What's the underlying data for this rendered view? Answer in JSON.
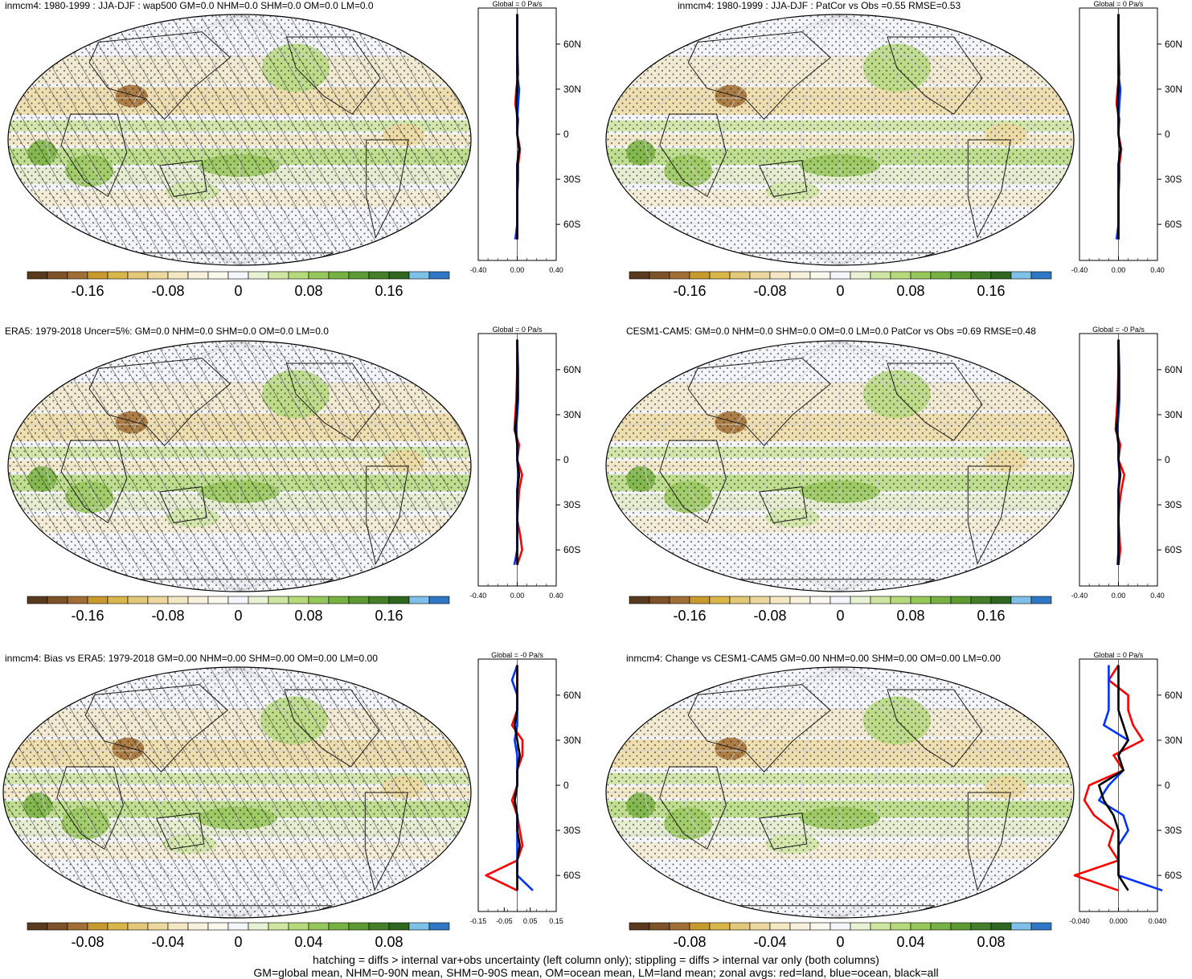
{
  "colors": {
    "colorbar": [
      "#5a3a1c",
      "#7d5228",
      "#a16f35",
      "#c89a2e",
      "#d8b64a",
      "#e2c878",
      "#ecd89e",
      "#f3e8c3",
      "#f8f1dc",
      "#fbf8ee",
      "#f4f6fc",
      "#e8f2d4",
      "#cfe6a3",
      "#b5d97b",
      "#96c75a",
      "#78b143",
      "#5c9a33",
      "#437f29",
      "#2e6720",
      "#7fc0e8",
      "#2f77c4"
    ],
    "map_background": "#f4f5fb",
    "land_line": "#1a1a1a",
    "zonal_land": "#ff0000",
    "zonal_ocean": "#0033ff",
    "zonal_all": "#000000"
  },
  "panels": [
    {
      "title": "inmcm4: 1980-1999 : JJA-DJF : wap500 GM=0.0 NHM=0.0 SHM=0.0 OM=0.0 LM=0.0",
      "colorbar_labels": [
        "-0.16",
        "-0.08",
        "0",
        "0.08",
        "0.16"
      ],
      "zonal": {
        "header": "Global = 0 Pa/s",
        "x_ticks": [
          "-0.40",
          "0.00",
          "0.40"
        ],
        "lat_labels": [
          "60N",
          "30N",
          "0",
          "30S",
          "60S"
        ]
      }
    },
    {
      "title": "inmcm4: 1980-1999 : JJA-DJF : PatCor vs Obs =0.55 RMSE=0.53",
      "colorbar_labels": [
        "-0.16",
        "-0.08",
        "0",
        "0.08",
        "0.16"
      ],
      "zonal": {
        "header": "Global = 0 Pa/s",
        "x_ticks": [
          "-0.40",
          "0.00",
          "0.40"
        ],
        "lat_labels": [
          "60N",
          "30N",
          "0",
          "30S",
          "60S"
        ]
      }
    },
    {
      "title": "ERA5: 1979-2018 Uncer=5%: GM=0.0 NHM=0.0 SHM=0.0 OM=0.0 LM=0.0",
      "colorbar_labels": [
        "-0.16",
        "-0.08",
        "0",
        "0.08",
        "0.16"
      ],
      "zonal": {
        "header": "Global = 0 Pa/s",
        "x_ticks": [
          "-0.40",
          "0.00",
          "0.40"
        ],
        "lat_labels": [
          "60N",
          "30N",
          "0",
          "30S",
          "60S"
        ]
      }
    },
    {
      "title": "CESM1-CAM5: GM=0.0 NHM=0.0 SHM=0.0 OM=0.0 LM=0.0 PatCor vs Obs =0.69 RMSE=0.48",
      "colorbar_labels": [
        "-0.16",
        "-0.08",
        "0",
        "0.08",
        "0.16"
      ],
      "zonal": {
        "header": "Global = -0 Pa/s",
        "x_ticks": [
          "-0.40",
          "0.00",
          "0.40"
        ],
        "lat_labels": [
          "60N",
          "30N",
          "0",
          "30S",
          "60S"
        ]
      }
    },
    {
      "title": "inmcm4: Bias vs ERA5: 1979-2018 GM=0.00 NHM=0.00 SHM=0.00 OM=0.00 LM=0.00",
      "colorbar_labels": [
        "-0.08",
        "-0.04",
        "0",
        "0.04",
        "0.08"
      ],
      "zonal": {
        "header": "Global = -0 Pa/s",
        "x_ticks": [
          "-0.15",
          "-0.05",
          "0.05",
          "0.15"
        ],
        "lat_labels": [
          "60N",
          "30N",
          "0",
          "30S",
          "60S"
        ]
      }
    },
    {
      "title": "inmcm4: Change vs CESM1-CAM5 GM=0.00 NHM=0.00 SHM=0.00 OM=0.00 LM=0.00",
      "colorbar_labels": [
        "-0.08",
        "-0.04",
        "0",
        "0.04",
        "0.08"
      ],
      "zonal": {
        "header": "Global = 0 Pa/s",
        "x_ticks": [
          "-0.040",
          "0.000",
          "0.040"
        ],
        "lat_labels": [
          "60N",
          "30N",
          "0",
          "30S",
          "60S"
        ]
      }
    }
  ],
  "footer": {
    "line1": "hatching = diffs > internal var+obs uncertainty (left column only); stippling = diffs > internal var only (both columns)",
    "line2": "GM=global mean, NHM=0-90N mean, SHM=0-90S mean, OM=ocean mean, LM=land mean; zonal avgs: red=land, blue=ocean, black=all"
  },
  "chart_data": [
    {
      "type": "heatmap",
      "title": "inmcm4: 1980-1999 : JJA-DJF : wap500 GM=0.0 NHM=0.0 SHM=0.0 OM=0.0 LM=0.0",
      "colorbar_ticks": [
        -0.16,
        -0.08,
        0,
        0.08,
        0.16
      ],
      "zonal_mean_profile": {
        "lat": [
          80,
          60,
          40,
          30,
          20,
          10,
          0,
          -10,
          -20,
          -30,
          -40,
          -50,
          -60,
          -70
        ],
        "land": [
          0.0,
          0.0,
          0.01,
          -0.01,
          -0.02,
          0.01,
          0.0,
          0.03,
          0.01,
          0.01,
          0.0,
          0.0,
          0.0,
          0.0
        ],
        "ocean": [
          0.0,
          0.0,
          0.0,
          0.02,
          0.01,
          0.0,
          0.0,
          0.02,
          0.0,
          0.0,
          0.0,
          0.0,
          0.0,
          -0.02
        ],
        "all": [
          0.0,
          0.0,
          0.0,
          0.0,
          -0.01,
          0.0,
          0.0,
          0.02,
          0.0,
          0.0,
          0.0,
          0.0,
          0.0,
          0.0
        ],
        "xlim": [
          -0.4,
          0.4
        ]
      }
    },
    {
      "type": "heatmap",
      "title": "inmcm4: 1980-1999 : JJA-DJF : PatCor vs Obs =0.55 RMSE=0.53",
      "colorbar_ticks": [
        -0.16,
        -0.08,
        0,
        0.08,
        0.16
      ],
      "zonal_mean_profile": {
        "lat": [
          80,
          60,
          40,
          30,
          20,
          10,
          0,
          -10,
          -20,
          -30,
          -40,
          -50,
          -60,
          -70
        ],
        "land": [
          0.0,
          0.0,
          0.01,
          -0.01,
          -0.02,
          0.01,
          0.0,
          0.03,
          0.01,
          0.01,
          0.0,
          0.0,
          0.0,
          0.0
        ],
        "ocean": [
          0.0,
          0.0,
          0.0,
          0.02,
          0.01,
          0.0,
          0.0,
          0.02,
          0.0,
          0.0,
          0.0,
          0.0,
          0.0,
          -0.02
        ],
        "all": [
          0.0,
          0.0,
          0.0,
          0.0,
          -0.01,
          0.0,
          0.0,
          0.02,
          0.0,
          0.0,
          0.0,
          0.0,
          0.0,
          0.0
        ],
        "xlim": [
          -0.4,
          0.4
        ]
      }
    },
    {
      "type": "heatmap",
      "title": "ERA5: 1979-2018 Uncer=5%: GM=0.0 NHM=0.0 SHM=0.0 OM=0.0 LM=0.0",
      "colorbar_ticks": [
        -0.16,
        -0.08,
        0,
        0.08,
        0.16
      ],
      "zonal_mean_profile": {
        "lat": [
          80,
          60,
          40,
          30,
          20,
          10,
          0,
          -10,
          -20,
          -30,
          -40,
          -50,
          -60,
          -70
        ],
        "land": [
          0.0,
          0.0,
          -0.01,
          -0.02,
          -0.03,
          0.02,
          0.0,
          0.05,
          0.02,
          0.01,
          0.0,
          0.03,
          0.05,
          0.0
        ],
        "ocean": [
          0.0,
          0.01,
          0.01,
          0.0,
          -0.01,
          0.0,
          0.0,
          0.01,
          0.0,
          0.0,
          0.0,
          0.0,
          0.0,
          -0.03
        ],
        "all": [
          0.0,
          0.0,
          0.0,
          -0.01,
          -0.02,
          0.0,
          0.0,
          0.02,
          0.0,
          0.0,
          0.0,
          0.0,
          0.0,
          0.0
        ],
        "xlim": [
          -0.4,
          0.4
        ]
      }
    },
    {
      "type": "heatmap",
      "title": "CESM1-CAM5: GM=0.0 NHM=0.0 SHM=0.0 OM=0.0 LM=0.0 PatCor vs Obs =0.69 RMSE=0.48",
      "colorbar_ticks": [
        -0.16,
        -0.08,
        0,
        0.08,
        0.16
      ],
      "zonal_mean_profile": {
        "lat": [
          80,
          60,
          40,
          30,
          20,
          10,
          0,
          -10,
          -20,
          -30,
          -40,
          -50,
          -60,
          -70
        ],
        "land": [
          0.0,
          0.0,
          -0.01,
          -0.02,
          -0.03,
          0.02,
          0.0,
          0.06,
          0.03,
          0.01,
          0.0,
          0.01,
          0.02,
          0.0
        ],
        "ocean": [
          0.0,
          0.01,
          0.01,
          0.0,
          -0.01,
          0.0,
          0.0,
          0.01,
          0.0,
          0.0,
          0.0,
          0.0,
          0.0,
          -0.01
        ],
        "all": [
          0.0,
          0.0,
          0.0,
          -0.01,
          -0.02,
          0.0,
          0.0,
          0.02,
          0.0,
          0.0,
          0.0,
          0.0,
          0.0,
          0.0
        ],
        "xlim": [
          -0.4,
          0.4
        ]
      }
    },
    {
      "type": "heatmap",
      "title": "inmcm4: Bias vs ERA5: 1979-2018 GM=0.00 NHM=0.00 SHM=0.00 OM=0.00 LM=0.00",
      "colorbar_ticks": [
        -0.08,
        -0.04,
        0,
        0.04,
        0.08
      ],
      "zonal_mean_profile": {
        "lat": [
          80,
          70,
          60,
          50,
          40,
          30,
          20,
          10,
          0,
          -10,
          -20,
          -30,
          -40,
          -50,
          -60,
          -70
        ],
        "land": [
          0.0,
          0.0,
          0.0,
          0.0,
          -0.02,
          0.02,
          0.02,
          0.0,
          0.0,
          -0.02,
          0.0,
          0.01,
          0.02,
          0.0,
          -0.12,
          0.0
        ],
        "ocean": [
          0.0,
          -0.02,
          0.0,
          0.0,
          0.0,
          -0.01,
          0.0,
          0.0,
          0.0,
          -0.01,
          0.0,
          0.0,
          0.0,
          0.0,
          0.0,
          0.06
        ],
        "all": [
          0.0,
          0.0,
          0.0,
          0.0,
          -0.01,
          0.0,
          0.01,
          0.0,
          0.0,
          -0.01,
          0.0,
          0.0,
          0.01,
          0.0,
          0.0,
          0.0
        ],
        "xlim": [
          -0.15,
          0.15
        ]
      }
    },
    {
      "type": "heatmap",
      "title": "inmcm4: Change vs CESM1-CAM5 GM=0.00 NHM=0.00 SHM=0.00 OM=0.00 LM=0.00",
      "colorbar_ticks": [
        -0.08,
        -0.04,
        0,
        0.04,
        0.08
      ],
      "zonal_mean_profile": {
        "lat": [
          80,
          70,
          60,
          50,
          40,
          30,
          20,
          10,
          0,
          -10,
          -20,
          -30,
          -40,
          -50,
          -60,
          -70
        ],
        "land": [
          0.0,
          -0.01,
          0.01,
          0.01,
          0.015,
          0.025,
          -0.005,
          0.005,
          -0.03,
          -0.035,
          -0.025,
          -0.005,
          -0.01,
          0.0,
          -0.045,
          0.0
        ],
        "ocean": [
          -0.01,
          -0.01,
          -0.01,
          -0.01,
          -0.015,
          0.01,
          0.0,
          0.005,
          -0.01,
          -0.02,
          0.005,
          0.01,
          0.0,
          0.0,
          0.0,
          0.045
        ],
        "all": [
          0.0,
          0.0,
          0.0,
          0.0,
          0.005,
          0.01,
          0.0,
          0.005,
          -0.02,
          -0.015,
          -0.005,
          0.0,
          0.0,
          0.0,
          0.0,
          0.01
        ],
        "xlim": [
          -0.04,
          0.04
        ]
      }
    }
  ]
}
